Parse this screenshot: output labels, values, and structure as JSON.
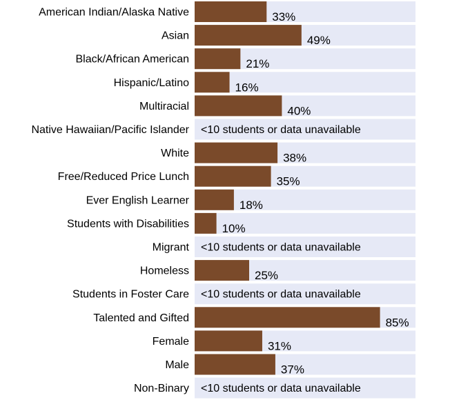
{
  "chart_data": {
    "type": "bar",
    "orientation": "horizontal",
    "xlim": [
      0,
      100
    ],
    "value_format": "percent",
    "categories": [
      "American Indian/Alaska Native",
      "Asian",
      "Black/African American",
      "Hispanic/Latino",
      "Multiracial",
      "Native Hawaiian/Pacific Islander",
      "White",
      "Free/Reduced Price Lunch",
      "Ever English Learner",
      "Students with Disabilities",
      "Migrant",
      "Homeless",
      "Students in Foster Care",
      "Talented and Gifted",
      "Female",
      "Male",
      "Non-Binary"
    ],
    "values": [
      33,
      49,
      21,
      16,
      40,
      null,
      38,
      35,
      18,
      10,
      null,
      25,
      null,
      85,
      31,
      37,
      null
    ],
    "missing_label": "<10 students or data unavailable",
    "colors": {
      "bar": "#7a4a2a",
      "track": "#e6e9f6",
      "text": "#000000"
    }
  }
}
